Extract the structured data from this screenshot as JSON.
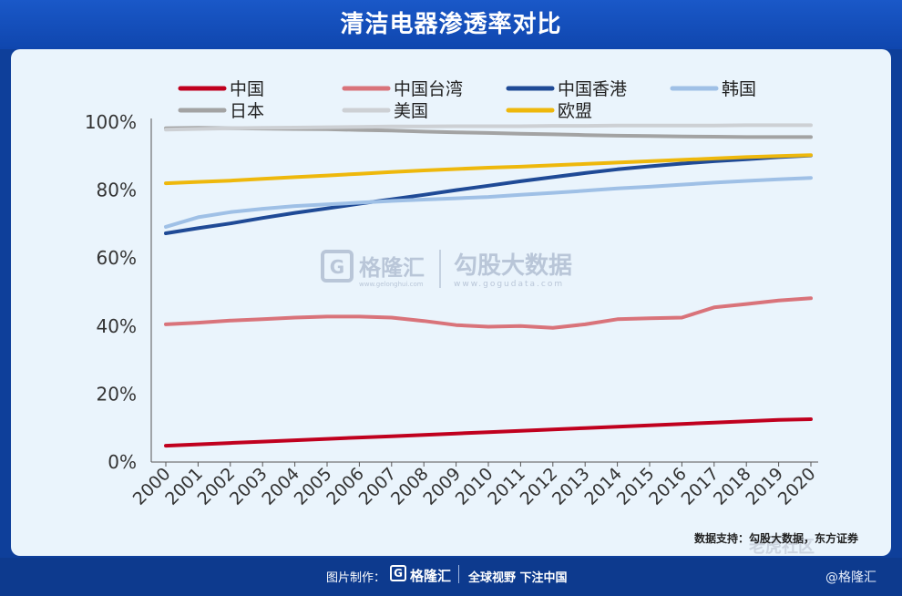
{
  "title": "清洁电器渗透率对比",
  "source": "数据支持：勾股大数据，东方证券",
  "footer": {
    "credit_label": "图片制作：",
    "logo_letter": "G",
    "brand": "格隆汇",
    "slogan": "全球视野 下注中国",
    "handle": "@格隆汇"
  },
  "watermarks": {
    "logo_letter": "G",
    "brand": "格隆汇",
    "brand_url": "www.gelonghui.com",
    "db_name": "勾股大数据",
    "db_url": "www.gogudata.com",
    "corner": "老虎社区"
  },
  "chart_data": {
    "type": "line",
    "title": "清洁电器渗透率对比",
    "xlabel": "",
    "ylabel": "",
    "ylim": [
      0,
      100
    ],
    "y_ticks": [
      "0%",
      "20%",
      "40%",
      "60%",
      "80%",
      "100%"
    ],
    "grid": false,
    "legend_position": "top",
    "categories": [
      "2000",
      "2001",
      "2002",
      "2003",
      "2004",
      "2005",
      "2006",
      "2007",
      "2008",
      "2009",
      "2010",
      "2011",
      "2012",
      "2013",
      "2014",
      "2015",
      "2016",
      "2017",
      "2018",
      "2019",
      "2020"
    ],
    "series": [
      {
        "name": "中国",
        "color": "#c0001e",
        "values": [
          4.8,
          5.2,
          5.6,
          6.0,
          6.4,
          6.8,
          7.2,
          7.6,
          8.0,
          8.4,
          8.8,
          9.2,
          9.6,
          10.0,
          10.4,
          10.8,
          11.2,
          11.6,
          12.0,
          12.4,
          12.6
        ]
      },
      {
        "name": "中国台湾",
        "color": "#d9737a",
        "values": [
          40.5,
          41.0,
          41.6,
          42.0,
          42.5,
          42.8,
          42.8,
          42.5,
          41.5,
          40.3,
          39.8,
          40.0,
          39.5,
          40.5,
          42.0,
          42.3,
          42.5,
          45.5,
          46.5,
          47.5,
          48.2
        ]
      },
      {
        "name": "中国香港",
        "color": "#1f4a96",
        "values": [
          67.3,
          68.8,
          70.2,
          71.8,
          73.3,
          74.6,
          76.0,
          77.3,
          78.6,
          80.0,
          81.3,
          82.6,
          83.8,
          85.0,
          86.1,
          87.0,
          87.8,
          88.5,
          89.1,
          89.7,
          90.2
        ]
      },
      {
        "name": "韩国",
        "color": "#9fc0e6",
        "values": [
          69.2,
          72.0,
          73.5,
          74.5,
          75.3,
          75.8,
          76.3,
          76.8,
          77.2,
          77.6,
          78.0,
          78.6,
          79.2,
          79.8,
          80.5,
          81.0,
          81.6,
          82.2,
          82.7,
          83.2,
          83.6
        ]
      },
      {
        "name": "日本",
        "color": "#a3a3a3",
        "values": [
          98.2,
          98.3,
          98.2,
          98.1,
          98.0,
          97.9,
          97.7,
          97.5,
          97.2,
          97.0,
          96.8,
          96.6,
          96.4,
          96.2,
          96.0,
          95.9,
          95.8,
          95.7,
          95.6,
          95.6,
          95.6
        ]
      },
      {
        "name": "美国",
        "color": "#cdd0d4",
        "values": [
          97.8,
          98.0,
          98.2,
          98.3,
          98.4,
          98.5,
          98.6,
          98.7,
          98.7,
          98.8,
          98.8,
          98.8,
          98.9,
          98.9,
          99.0,
          99.0,
          99.0,
          99.0,
          99.1,
          99.1,
          99.1
        ]
      },
      {
        "name": "欧盟",
        "color": "#eeb80c",
        "values": [
          82.0,
          82.4,
          82.8,
          83.3,
          83.8,
          84.3,
          84.8,
          85.3,
          85.8,
          86.2,
          86.6,
          86.9,
          87.3,
          87.7,
          88.1,
          88.5,
          88.9,
          89.3,
          89.7,
          90.0,
          90.3
        ]
      }
    ]
  }
}
